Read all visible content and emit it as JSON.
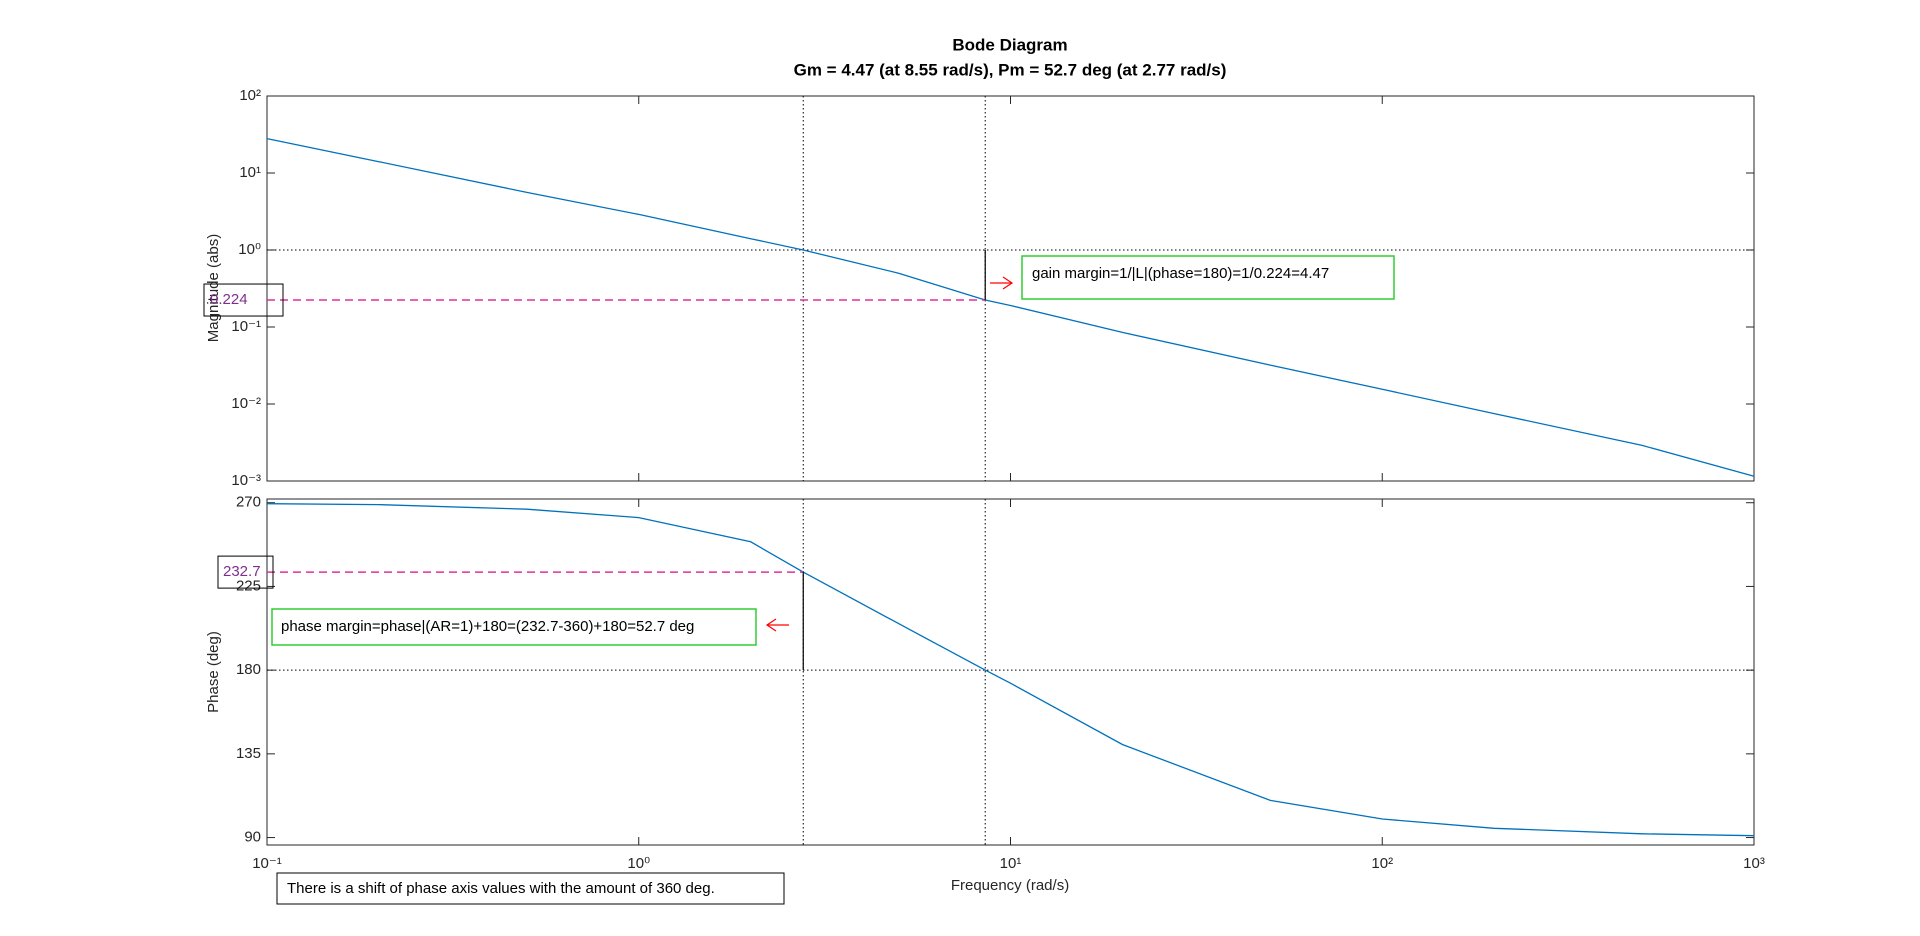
{
  "chart_data": [
    {
      "type": "line",
      "title": "Bode Diagram",
      "subtitle": "Gm = 4.47 (at 8.55 rad/s),  Pm = 52.7 deg (at 2.77 rad/s)",
      "ylabel": "Magnitude (abs)",
      "log_x": true,
      "log_y": true,
      "xlim": [
        0.1,
        1000
      ],
      "xticks": [
        0.1,
        1,
        10,
        100,
        1000
      ],
      "ylim": [
        0.001,
        100
      ],
      "yticks": [
        {
          "value": 0.001,
          "label": "10⁻³"
        },
        {
          "value": 0.01,
          "label": "10⁻²"
        },
        {
          "value": 0.1,
          "label": "10⁻¹"
        },
        {
          "value": 1,
          "label": "10⁰"
        },
        {
          "value": 10,
          "label": "10¹"
        },
        {
          "value": 100,
          "label": "10²"
        }
      ],
      "x": [
        0.1,
        0.2,
        0.5,
        1,
        2,
        2.77,
        5,
        8.55,
        10,
        20,
        50,
        100,
        200,
        500,
        1000
      ],
      "series": [
        {
          "color": "#0072bd",
          "values": [
            28,
            14,
            5.6,
            2.9,
            1.4,
            1,
            0.5,
            0.224,
            0.19,
            0.085,
            0.032,
            0.0155,
            0.0075,
            0.0029,
            0.00115
          ]
        }
      ],
      "reference_y": 1,
      "reference_x": [
        2.77,
        8.55
      ],
      "marker": {
        "x": 8.55,
        "y": 0.224
      },
      "annotation": "gain margin=1/|L|(phase=180)=1/0.224=4.47"
    },
    {
      "type": "line",
      "ylabel": "Phase (deg)",
      "xlabel": "Frequency  (rad/s)",
      "log_x": true,
      "log_y": false,
      "xlim": [
        0.1,
        1000
      ],
      "xticks": [
        {
          "value": 0.1,
          "label": "10⁻¹"
        },
        {
          "value": 1,
          "label": "10⁰"
        },
        {
          "value": 10,
          "label": "10¹"
        },
        {
          "value": 100,
          "label": "10²"
        },
        {
          "value": 1000,
          "label": "10³"
        }
      ],
      "ylim": [
        86,
        272
      ],
      "yticks": [
        90,
        135,
        180,
        225,
        270
      ],
      "x": [
        0.1,
        0.2,
        0.5,
        1,
        2,
        2.77,
        5,
        8.55,
        10,
        20,
        50,
        100,
        200,
        500,
        1000
      ],
      "series": [
        {
          "color": "#0072bd",
          "values": [
            269.5,
            269,
            266.5,
            262,
            249,
            232.7,
            205,
            180,
            173,
            140,
            110,
            100,
            95,
            92,
            91
          ]
        }
      ],
      "reference_y": 180,
      "reference_x": [
        2.77,
        8.55
      ],
      "marker": {
        "x": 2.77,
        "y": 232.7
      },
      "annotation": "phase margin=phase|(AR=1)+180=(232.7-360)+180=52.7 deg",
      "note": "There is a shift of phase axis values with the amount of 360 deg."
    }
  ]
}
